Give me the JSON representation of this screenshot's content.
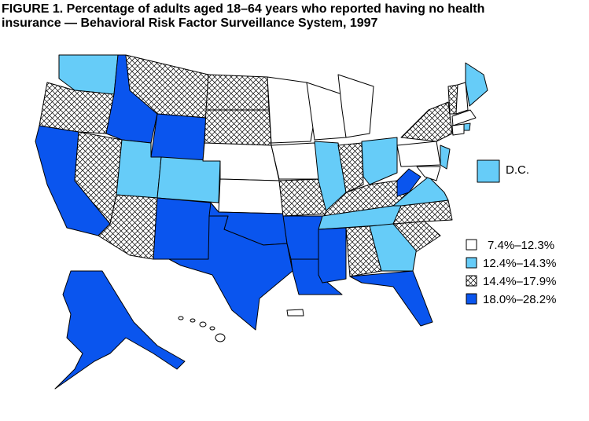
{
  "title_lines": [
    "FIGURE 1. Percentage of adults aged 18–64 years who reported having no health",
    "insurance — Behavioral Risk Factor Surveillance System, 1997"
  ],
  "dc_label": "D.C.",
  "legend": [
    {
      "label": "7.4%–12.3%"
    },
    {
      "label": "12.4%–14.3%"
    },
    {
      "label": "14.4%–17.9%"
    },
    {
      "label": "18.0%–28.2%"
    }
  ]
}
